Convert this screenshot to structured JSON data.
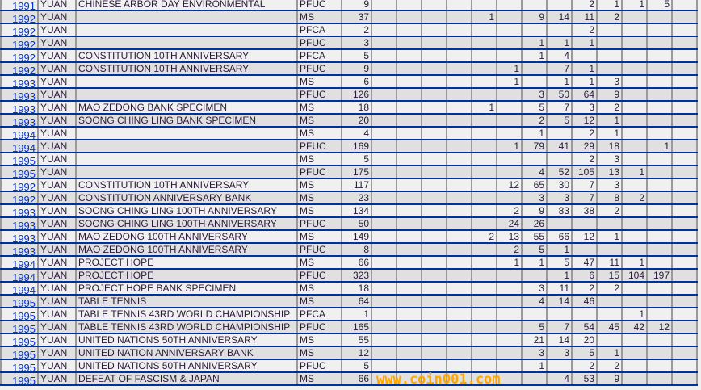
{
  "rows": [
    {
      "year": "1991",
      "denom": "YUAN",
      "name": "CHINESE ARBOR DAY ENVIRONMENTAL",
      "type": "PFUC",
      "total": "9",
      "grades": [
        "",
        "",
        "",
        "",
        "",
        "",
        "",
        "",
        "2",
        "1",
        "1",
        "5",
        ""
      ]
    },
    {
      "year": "1992",
      "denom": "YUAN",
      "name": "",
      "type": "MS",
      "total": "37",
      "grades": [
        "",
        "",
        "",
        "",
        "1",
        "",
        "9",
        "14",
        "11",
        "2",
        "",
        "",
        ""
      ]
    },
    {
      "year": "1992",
      "denom": "YUAN",
      "name": "",
      "type": "PFCA",
      "total": "2",
      "grades": [
        "",
        "",
        "",
        "",
        "",
        "",
        "",
        "",
        "2",
        "",
        "",
        "",
        ""
      ]
    },
    {
      "year": "1992",
      "denom": "YUAN",
      "name": "",
      "type": "PFUC",
      "total": "3",
      "grades": [
        "",
        "",
        "",
        "",
        "",
        "",
        "1",
        "1",
        "1",
        "",
        "",
        "",
        ""
      ]
    },
    {
      "year": "1992",
      "denom": "YUAN",
      "name": "CONSTITUTION 10TH ANNIVERSARY",
      "type": "PFCA",
      "total": "5",
      "grades": [
        "",
        "",
        "",
        "",
        "",
        "",
        "1",
        "4",
        "",
        "",
        "",
        "",
        ""
      ]
    },
    {
      "year": "1992",
      "denom": "YUAN",
      "name": "CONSTITUTION 10TH ANNIVERSARY",
      "type": "PFUC",
      "total": "9",
      "grades": [
        "",
        "",
        "",
        "",
        "",
        "1",
        "",
        "7",
        "1",
        "",
        "",
        "",
        ""
      ]
    },
    {
      "year": "1993",
      "denom": "YUAN",
      "name": "",
      "type": "MS",
      "total": "6",
      "grades": [
        "",
        "",
        "",
        "",
        "",
        "1",
        "",
        "1",
        "1",
        "3",
        "",
        "",
        ""
      ]
    },
    {
      "year": "1993",
      "denom": "YUAN",
      "name": "",
      "type": "PFUC",
      "total": "126",
      "grades": [
        "",
        "",
        "",
        "",
        "",
        "",
        "3",
        "50",
        "64",
        "9",
        "",
        "",
        ""
      ]
    },
    {
      "year": "1993",
      "denom": "YUAN",
      "name": "MAO ZEDONG BANK SPECIMEN",
      "type": "MS",
      "total": "18",
      "grades": [
        "",
        "",
        "",
        "",
        "1",
        "",
        "5",
        "7",
        "3",
        "2",
        "",
        "",
        ""
      ]
    },
    {
      "year": "1993",
      "denom": "YUAN",
      "name": "SOONG CHING LING BANK SPECIMEN",
      "type": "MS",
      "total": "20",
      "grades": [
        "",
        "",
        "",
        "",
        "",
        "",
        "2",
        "5",
        "12",
        "1",
        "",
        "",
        ""
      ]
    },
    {
      "year": "1994",
      "denom": "YUAN",
      "name": "",
      "type": "MS",
      "total": "4",
      "grades": [
        "",
        "",
        "",
        "",
        "",
        "",
        "1",
        "",
        "2",
        "1",
        "",
        "",
        ""
      ]
    },
    {
      "year": "1994",
      "denom": "YUAN",
      "name": "",
      "type": "PFUC",
      "total": "169",
      "grades": [
        "",
        "",
        "",
        "",
        "",
        "1",
        "79",
        "41",
        "29",
        "18",
        "",
        "1",
        ""
      ]
    },
    {
      "year": "1995",
      "denom": "YUAN",
      "name": "",
      "type": "MS",
      "total": "5",
      "grades": [
        "",
        "",
        "",
        "",
        "",
        "",
        "",
        "",
        "2",
        "3",
        "",
        "",
        ""
      ]
    },
    {
      "year": "1995",
      "denom": "YUAN",
      "name": "",
      "type": "PFUC",
      "total": "175",
      "grades": [
        "",
        "",
        "",
        "",
        "",
        "",
        "4",
        "52",
        "105",
        "13",
        "1",
        "",
        ""
      ]
    },
    {
      "year": "1992",
      "denom": "YUAN",
      "name": "CONSTITUTION 10TH ANNIVERSARY",
      "type": "MS",
      "total": "117",
      "grades": [
        "",
        "",
        "",
        "",
        "",
        "12",
        "65",
        "30",
        "7",
        "3",
        "",
        "",
        ""
      ]
    },
    {
      "year": "1992",
      "denom": "YUAN",
      "name": "CONSTITUTION ANNIVERSARY BANK",
      "type": "MS",
      "total": "23",
      "grades": [
        "",
        "",
        "",
        "",
        "",
        "",
        "3",
        "3",
        "7",
        "8",
        "2",
        "",
        ""
      ]
    },
    {
      "year": "1993",
      "denom": "YUAN",
      "name": "SOONG CHING LING 100TH ANNIVERSARY",
      "type": "MS",
      "total": "134",
      "grades": [
        "",
        "",
        "",
        "",
        "",
        "2",
        "9",
        "83",
        "38",
        "2",
        "",
        "",
        ""
      ]
    },
    {
      "year": "1993",
      "denom": "YUAN",
      "name": "SOONG CHING LING 100TH ANNIVERSARY",
      "type": "PFUC",
      "total": "50",
      "grades": [
        "",
        "",
        "",
        "",
        "",
        "24",
        "26",
        "",
        "",
        "",
        "",
        "",
        ""
      ]
    },
    {
      "year": "1993",
      "denom": "YUAN",
      "name": "MAO ZEDONG 100TH ANNIVERSARY",
      "type": "MS",
      "total": "149",
      "grades": [
        "",
        "",
        "",
        "",
        "2",
        "13",
        "55",
        "66",
        "12",
        "1",
        "",
        "",
        ""
      ]
    },
    {
      "year": "1993",
      "denom": "YUAN",
      "name": "MAO ZEDONG 100TH ANNIVERSARY",
      "type": "PFUC",
      "total": "8",
      "grades": [
        "",
        "",
        "",
        "",
        "",
        "2",
        "5",
        "1",
        "",
        "",
        "",
        "",
        ""
      ]
    },
    {
      "year": "1994",
      "denom": "YUAN",
      "name": "PROJECT HOPE",
      "type": "MS",
      "total": "66",
      "grades": [
        "",
        "",
        "",
        "",
        "",
        "1",
        "1",
        "5",
        "47",
        "11",
        "1",
        "",
        ""
      ]
    },
    {
      "year": "1994",
      "denom": "YUAN",
      "name": "PROJECT HOPE",
      "type": "PFUC",
      "total": "323",
      "grades": [
        "",
        "",
        "",
        "",
        "",
        "",
        "",
        "1",
        "6",
        "15",
        "104",
        "197",
        ""
      ]
    },
    {
      "year": "1994",
      "denom": "YUAN",
      "name": "PROJECT HOPE BANK SPECIMEN",
      "type": "MS",
      "total": "18",
      "grades": [
        "",
        "",
        "",
        "",
        "",
        "",
        "3",
        "11",
        "2",
        "2",
        "",
        "",
        ""
      ]
    },
    {
      "year": "1995",
      "denom": "YUAN",
      "name": "TABLE TENNIS",
      "type": "MS",
      "total": "64",
      "grades": [
        "",
        "",
        "",
        "",
        "",
        "",
        "4",
        "14",
        "46",
        "",
        "",
        "",
        ""
      ]
    },
    {
      "year": "1995",
      "denom": "YUAN",
      "name": "TABLE TENNIS 43RD WORLD CHAMPIONSHIP",
      "type": "PFCA",
      "total": "1",
      "grades": [
        "",
        "",
        "",
        "",
        "",
        "",
        "",
        "",
        "",
        "",
        "1",
        "",
        ""
      ]
    },
    {
      "year": "1995",
      "denom": "YUAN",
      "name": "TABLE TENNIS 43RD WORLD CHAMPIONSHIP",
      "type": "PFUC",
      "total": "165",
      "grades": [
        "",
        "",
        "",
        "",
        "",
        "",
        "5",
        "7",
        "54",
        "45",
        "42",
        "12",
        ""
      ]
    },
    {
      "year": "1995",
      "denom": "YUAN",
      "name": "UNITED NATIONS 50TH ANNIVERSARY",
      "type": "MS",
      "total": "55",
      "grades": [
        "",
        "",
        "",
        "",
        "",
        "",
        "21",
        "14",
        "20",
        "",
        "",
        "",
        ""
      ]
    },
    {
      "year": "1995",
      "denom": "YUAN",
      "name": "UNITED NATION ANNIVERSARY BANK",
      "type": "MS",
      "total": "12",
      "grades": [
        "",
        "",
        "",
        "",
        "",
        "",
        "3",
        "3",
        "5",
        "1",
        "",
        "",
        ""
      ]
    },
    {
      "year": "1995",
      "denom": "YUAN",
      "name": "UNITED NATIONS 50TH ANNIVERSARY",
      "type": "PFUC",
      "total": "5",
      "grades": [
        "",
        "",
        "",
        "",
        "",
        "",
        "1",
        "",
        "2",
        "2",
        "",
        "",
        ""
      ]
    },
    {
      "year": "1995",
      "denom": "YUAN",
      "name": "DEFEAT OF FASCISM & JAPAN",
      "type": "MS",
      "total": "66",
      "grades": [
        "",
        "",
        "",
        "",
        "",
        "",
        "",
        "4",
        "53",
        "9",
        "",
        "",
        ""
      ]
    }
  ],
  "watermark": "www.coin001.com",
  "colors": {
    "row_border": "#003399",
    "column_border": "#9a9a9a",
    "link": "#0033cc",
    "watermark": "#ffa500",
    "row_odd": "#f0f0f0",
    "row_even": "#e0e0e0"
  }
}
